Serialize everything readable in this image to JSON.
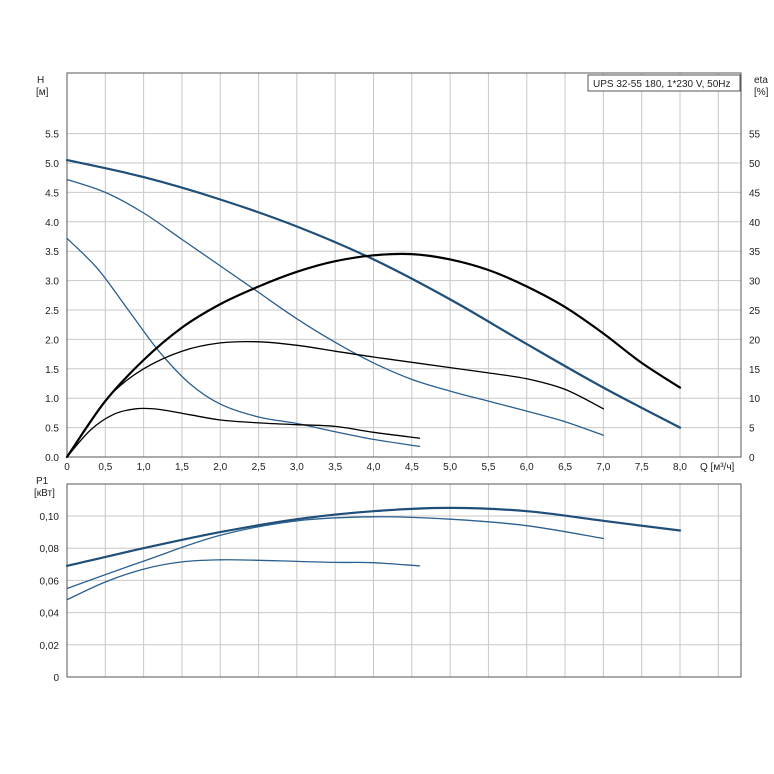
{
  "chart_data": [
    {
      "type": "line",
      "title": "UPS 32-55 180, 1*230 V, 50Hz",
      "xlabel": "Q [м³/ч]",
      "ylabel_h_name": "H",
      "ylabel_h_unit": "[м]",
      "ylabel_eta_name": "eta",
      "ylabel_eta_unit": "[%]",
      "xlim": [
        0,
        8.8
      ],
      "ylim_h": [
        0,
        6.0
      ],
      "ylim_eta": [
        0,
        60
      ],
      "grid": true,
      "x_ticks": [
        "0",
        "0,5",
        "1,0",
        "1,5",
        "2,0",
        "2,5",
        "3,0",
        "3,5",
        "4,0",
        "4,5",
        "5,0",
        "5,5",
        "6,0",
        "6,5",
        "7,0",
        "7,5",
        "8,0"
      ],
      "h_ticks": [
        "0.0",
        "0.5",
        "1.0",
        "1.5",
        "2.0",
        "2.5",
        "3.0",
        "3.5",
        "4.0",
        "4.5",
        "5.0",
        "5.5"
      ],
      "eta_ticks": [
        "0",
        "5",
        "10",
        "15",
        "20",
        "25",
        "30",
        "35",
        "40",
        "45",
        "50",
        "55"
      ],
      "series": [
        {
          "axis": "h",
          "kind": "head",
          "color": "#1f4e79",
          "width": 2.2,
          "points": [
            [
              0,
              5.05
            ],
            [
              1,
              4.76
            ],
            [
              2,
              4.38
            ],
            [
              3,
              3.92
            ],
            [
              4,
              3.36
            ],
            [
              5,
              2.68
            ],
            [
              6,
              1.92
            ],
            [
              7,
              1.18
            ],
            [
              8,
              0.5
            ]
          ]
        },
        {
          "axis": "h",
          "kind": "head",
          "color": "#2a5f8f",
          "width": 1.3,
          "points": [
            [
              0,
              4.72
            ],
            [
              0.5,
              4.5
            ],
            [
              1,
              4.15
            ],
            [
              1.5,
              3.7
            ],
            [
              2,
              3.25
            ],
            [
              2.5,
              2.8
            ],
            [
              3,
              2.35
            ],
            [
              3.5,
              1.95
            ],
            [
              4,
              1.6
            ],
            [
              4.5,
              1.32
            ],
            [
              5,
              1.12
            ],
            [
              5.5,
              0.95
            ],
            [
              6,
              0.78
            ],
            [
              6.5,
              0.6
            ],
            [
              7,
              0.37
            ]
          ]
        },
        {
          "axis": "h",
          "kind": "head",
          "color": "#2a5f8f",
          "width": 1.3,
          "points": [
            [
              0,
              3.72
            ],
            [
              0.4,
              3.2
            ],
            [
              0.8,
              2.5
            ],
            [
              1.2,
              1.8
            ],
            [
              1.6,
              1.25
            ],
            [
              2,
              0.9
            ],
            [
              2.5,
              0.68
            ],
            [
              3,
              0.57
            ],
            [
              3.5,
              0.43
            ],
            [
              4,
              0.3
            ],
            [
              4.6,
              0.18
            ]
          ]
        },
        {
          "axis": "eta",
          "kind": "efficiency",
          "color": "#000000",
          "width": 2.2,
          "points": [
            [
              0,
              0
            ],
            [
              0.5,
              9.5
            ],
            [
              1,
              16.5
            ],
            [
              1.5,
              22
            ],
            [
              2,
              26
            ],
            [
              2.5,
              29
            ],
            [
              3,
              31.5
            ],
            [
              3.5,
              33.3
            ],
            [
              4,
              34.3
            ],
            [
              4.5,
              34.5
            ],
            [
              5,
              33.6
            ],
            [
              5.5,
              31.8
            ],
            [
              6,
              29
            ],
            [
              6.5,
              25.5
            ],
            [
              7,
              21
            ],
            [
              7.5,
              16
            ],
            [
              8,
              11.8
            ]
          ]
        },
        {
          "axis": "eta",
          "kind": "efficiency",
          "color": "#000000",
          "width": 1.3,
          "points": [
            [
              0,
              0
            ],
            [
              0.3,
              6
            ],
            [
              0.6,
              11
            ],
            [
              1,
              15
            ],
            [
              1.5,
              18
            ],
            [
              2,
              19.4
            ],
            [
              2.5,
              19.6
            ],
            [
              3,
              19
            ],
            [
              3.5,
              18
            ],
            [
              4,
              17
            ],
            [
              4.5,
              16.1
            ],
            [
              5,
              15.2
            ],
            [
              5.5,
              14.3
            ],
            [
              6,
              13.3
            ],
            [
              6.5,
              11.5
            ],
            [
              7,
              8.2
            ]
          ]
        },
        {
          "axis": "eta",
          "kind": "efficiency",
          "color": "#000000",
          "width": 1.3,
          "points": [
            [
              0,
              0
            ],
            [
              0.3,
              4.5
            ],
            [
              0.6,
              7.2
            ],
            [
              0.9,
              8.2
            ],
            [
              1.2,
              8.1
            ],
            [
              1.6,
              7.2
            ],
            [
              2,
              6.3
            ],
            [
              2.5,
              5.8
            ],
            [
              3,
              5.5
            ],
            [
              3.5,
              5.2
            ],
            [
              4,
              4.2
            ],
            [
              4.6,
              3.2
            ]
          ]
        }
      ]
    },
    {
      "type": "line",
      "ylabel_name": "P1",
      "ylabel_unit": "[кВт]",
      "xlim": [
        0,
        8.8
      ],
      "ylim": [
        0,
        0.12
      ],
      "grid": true,
      "y_ticks": [
        "0",
        "0,02",
        "0,04",
        "0,06",
        "0,08",
        "0,10"
      ],
      "series": [
        {
          "color": "#1f4e79",
          "width": 2.2,
          "points": [
            [
              0,
              0.069
            ],
            [
              1,
              0.08
            ],
            [
              2,
              0.09
            ],
            [
              3,
              0.098
            ],
            [
              4,
              0.103
            ],
            [
              5,
              0.105
            ],
            [
              6,
              0.103
            ],
            [
              7,
              0.097
            ],
            [
              8,
              0.091
            ]
          ]
        },
        {
          "color": "#2a5f8f",
          "width": 1.3,
          "points": [
            [
              0,
              0.055
            ],
            [
              1,
              0.072
            ],
            [
              2,
              0.088
            ],
            [
              3,
              0.097
            ],
            [
              4,
              0.0995
            ],
            [
              5,
              0.098
            ],
            [
              6,
              0.094
            ],
            [
              7,
              0.086
            ]
          ]
        },
        {
          "color": "#2a5f8f",
          "width": 1.3,
          "points": [
            [
              0,
              0.048
            ],
            [
              0.5,
              0.059
            ],
            [
              1,
              0.067
            ],
            [
              1.5,
              0.0715
            ],
            [
              2,
              0.0728
            ],
            [
              2.5,
              0.0725
            ],
            [
              3,
              0.0718
            ],
            [
              3.5,
              0.0712
            ],
            [
              4,
              0.071
            ],
            [
              4.6,
              0.069
            ]
          ]
        }
      ]
    }
  ]
}
